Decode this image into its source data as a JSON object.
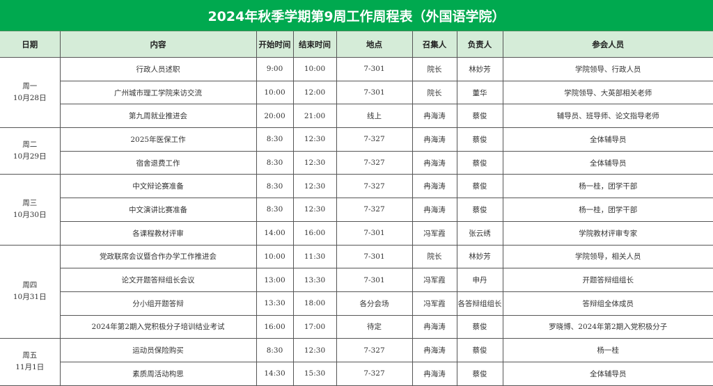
{
  "title": "2024年秋季学期第9周工作周程表（外国语学院）",
  "colors": {
    "title_bg": "#00a94f",
    "header_bg": "#d5ecd8"
  },
  "headers": [
    "日期",
    "内容",
    "开始时间",
    "结束时间",
    "地点",
    "召集人",
    "负责人",
    "参会人员"
  ],
  "days": [
    {
      "weekday": "周一",
      "date": "10月28日",
      "events": [
        [
          "行政人员述职",
          "9:00",
          "10:00",
          "7-301",
          "院长",
          "林妙芳",
          "学院领导、行政人员"
        ],
        [
          "广州城市理工学院来访交流",
          "10:00",
          "12:00",
          "7-301",
          "院长",
          "董华",
          "学院领导、大英部相关老师"
        ],
        [
          "第九周就业推进会",
          "20:00",
          "21:00",
          "线上",
          "冉海涛",
          "蔡俊",
          "辅导员、班导师、论文指导老师"
        ]
      ]
    },
    {
      "weekday": "周二",
      "date": "10月29日",
      "events": [
        [
          "2025年医保工作",
          "8:30",
          "12:30",
          "7-327",
          "冉海涛",
          "蔡俊",
          "全体辅导员"
        ],
        [
          "宿舍退费工作",
          "8:30",
          "12:30",
          "7-327",
          "冉海涛",
          "蔡俊",
          "全体辅导员"
        ]
      ]
    },
    {
      "weekday": "周三",
      "date": "10月30日",
      "events": [
        [
          "中文辩论赛准备",
          "8:30",
          "12:30",
          "7-327",
          "冉海涛",
          "蔡俊",
          "杨一桂，团学干部"
        ],
        [
          "中文演讲比赛准备",
          "8:30",
          "12:30",
          "7-327",
          "冉海涛",
          "蔡俊",
          "杨一桂，团学干部"
        ],
        [
          "各课程教材评审",
          "14:00",
          "16:00",
          "7-301",
          "冯军霞",
          "张云绣",
          "学院教材评审专家"
        ]
      ]
    },
    {
      "weekday": "周四",
      "date": "10月31日",
      "events": [
        [
          "党政联席会议暨合作办学工作推进会",
          "10:00",
          "11:30",
          "7-301",
          "院长",
          "林妙芳",
          "学院领导，相关人员"
        ],
        [
          "论文开题答辩组长会议",
          "13:00",
          "13:30",
          "7-301",
          "冯军霞",
          "申丹",
          "开题答辩组组长"
        ],
        [
          "分小组开题答辩",
          "13:30",
          "18:00",
          "各分会场",
          "冯军霞",
          "各答辩组组长",
          "答辩组全体成员"
        ],
        [
          "2024年第2期入党积极分子培训结业考试",
          "16:00",
          "17:00",
          "待定",
          "冉海涛",
          "蔡俊",
          "罗晓博、2024年第2期入党积极分子"
        ]
      ]
    },
    {
      "weekday": "周五",
      "date": "11月1日",
      "events": [
        [
          "运动员保险购买",
          "8:30",
          "12:30",
          "7-327",
          "冉海涛",
          "蔡俊",
          "杨一桂"
        ],
        [
          "素质周活动构思",
          "14:30",
          "15:30",
          "7-327",
          "冉海涛",
          "蔡俊",
          "全体辅导员"
        ]
      ]
    }
  ]
}
